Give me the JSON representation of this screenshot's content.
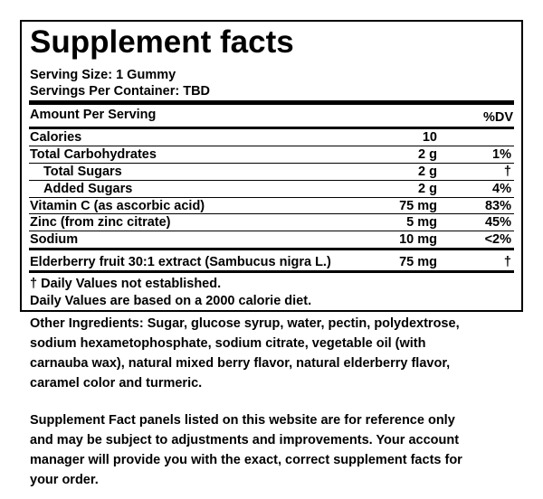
{
  "panel": {
    "title": "Supplement facts",
    "serving_size": "Serving Size: 1 Gummy",
    "servings_per_container": "Servings Per Container: TBD",
    "amount_header": "Amount Per Serving",
    "dv_header": "%DV",
    "rows": [
      {
        "name": "Calories",
        "amount": "10"
      },
      {
        "name": "Total Carbohydrates",
        "amount": "2 g",
        "dv": "1%"
      },
      {
        "name": "Total Sugars",
        "amount": "2 g",
        "dv": "†"
      },
      {
        "name": "Added Sugars",
        "amount": "2 g",
        "dv": "4%"
      },
      {
        "name": "Vitamin C (as ascorbic acid)",
        "amount": "75 mg",
        "dv": "83%"
      },
      {
        "name": "Zinc (from zinc citrate)",
        "amount": "5 mg",
        "dv": "45%"
      },
      {
        "name": "Sodium",
        "amount": "10 mg",
        "dv": "<2%"
      },
      {
        "name": "Elderberry fruit 30:1 extract (Sambucus nigra L.)",
        "amount": "75 mg",
        "dv": "†"
      }
    ],
    "footnotes": [
      "† Daily Values not established.",
      "Daily Values are based on a 2000 calorie diet."
    ]
  },
  "other_ingredients": [
    "Other Ingredients: Sugar, glucose syrup, water, pectin, polydextrose,",
    "sodium hexametophosphate, sodium citrate, vegetable oil (with",
    "carnauba wax), natural mixed berry flavor, natural elderberry flavor,",
    "caramel color and turmeric."
  ],
  "disclaimer": [
    "Supplement Fact panels listed on this website are for reference only",
    "and may be subject to adjustments and improvements. Your account",
    "manager will provide you with the exact, correct supplement facts for",
    "your order."
  ]
}
